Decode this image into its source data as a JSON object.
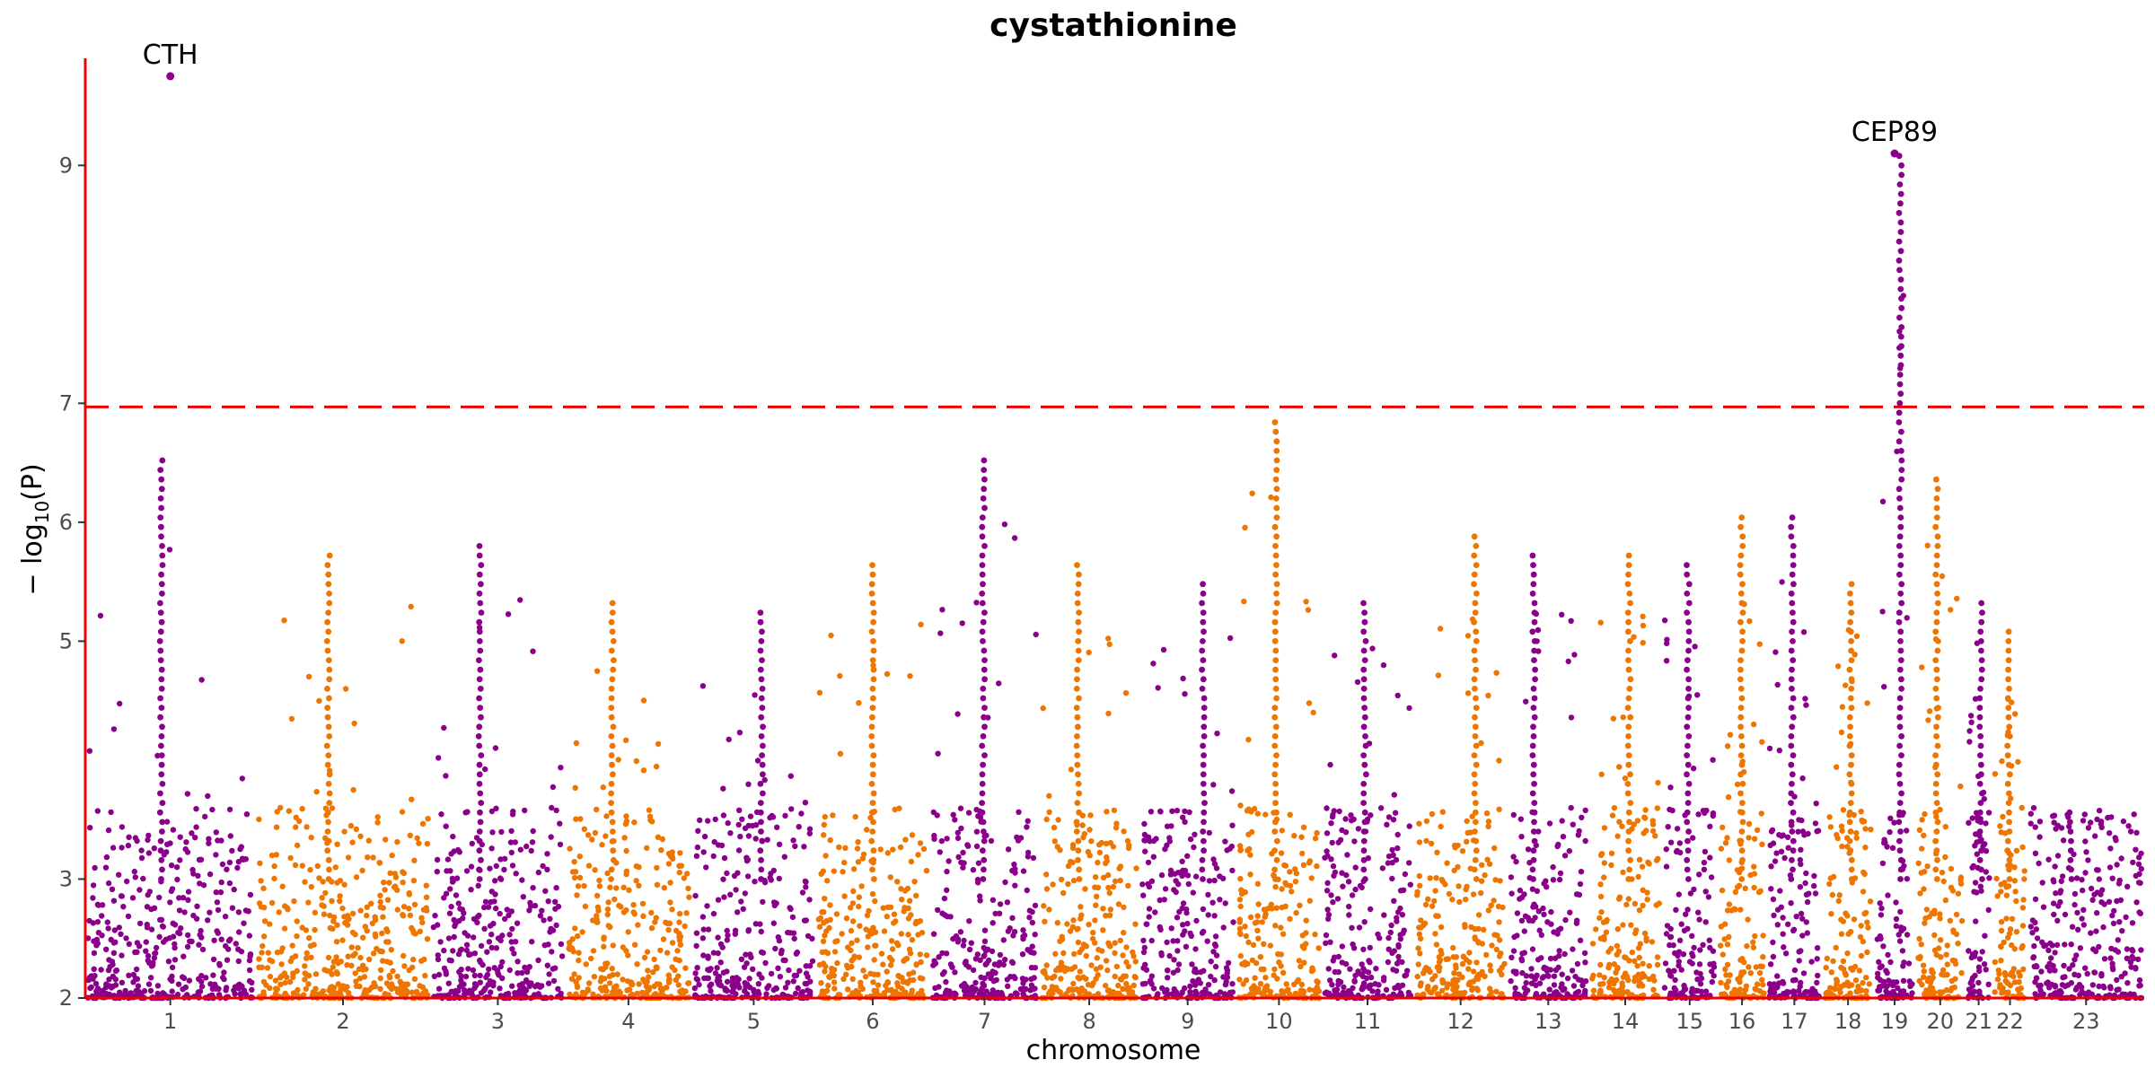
{
  "chart_data": {
    "type": "scatter",
    "title": "cystathionine",
    "xlabel": "chromosome",
    "ylabel": "− log10(P)",
    "ylim": [
      2,
      9.9
    ],
    "yticks": [
      "2",
      "3",
      "5",
      "6",
      "7",
      "9"
    ],
    "threshold": 6.97,
    "grid": false,
    "legend": "none",
    "colors": {
      "odd": "#8B008B",
      "even": "#EE7600",
      "threshold": "#EE0000",
      "axis": "#EE0000"
    },
    "chromosomes": [
      {
        "label": "1",
        "peak": 6.6
      },
      {
        "label": "2",
        "peak": 5.8
      },
      {
        "label": "3",
        "peak": 5.85
      },
      {
        "label": "4",
        "peak": 5.4
      },
      {
        "label": "5",
        "peak": 5.3
      },
      {
        "label": "6",
        "peak": 5.7
      },
      {
        "label": "7",
        "peak": 6.6
      },
      {
        "label": "8",
        "peak": 5.65
      },
      {
        "label": "9",
        "peak": 5.5
      },
      {
        "label": "10",
        "peak": 6.9
      },
      {
        "label": "11",
        "peak": 5.35
      },
      {
        "label": "12",
        "peak": 5.9
      },
      {
        "label": "13",
        "peak": 5.8
      },
      {
        "label": "14",
        "peak": 5.75
      },
      {
        "label": "15",
        "peak": 5.7
      },
      {
        "label": "16",
        "peak": 6.05
      },
      {
        "label": "17",
        "peak": 6.1
      },
      {
        "label": "18",
        "peak": 5.5
      },
      {
        "label": "19",
        "peak": 9.1
      },
      {
        "label": "20",
        "peak": 6.4
      },
      {
        "label": "21",
        "peak": 5.35
      },
      {
        "label": "22",
        "peak": 5.1
      },
      {
        "label": "23",
        "peak": 3.6
      }
    ],
    "annotations": [
      {
        "label": "CTH",
        "chromosome": "1",
        "y": 9.75
      },
      {
        "label": "CEP89",
        "chromosome": "19",
        "y": 9.1
      }
    ]
  }
}
